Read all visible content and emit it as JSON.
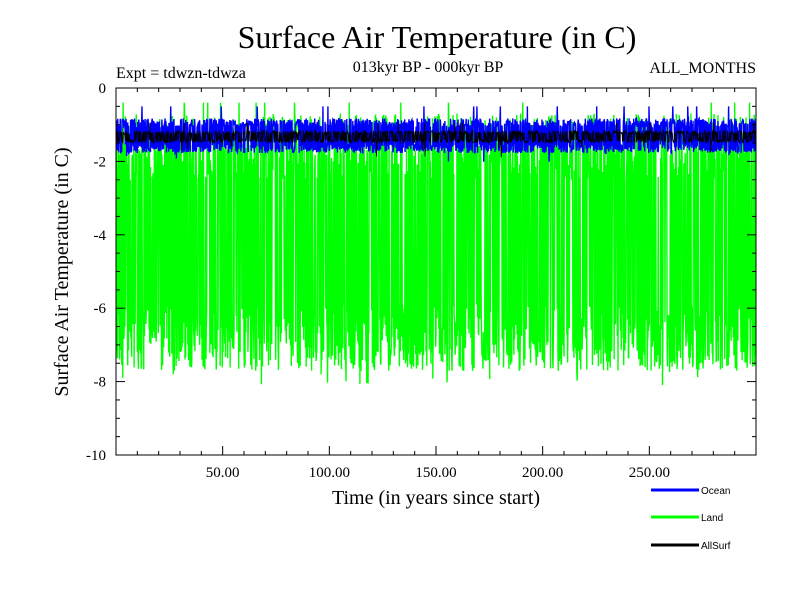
{
  "chart_data": {
    "type": "line",
    "title": "Surface Air Temperature (in C)",
    "subtitle": "013kyr BP - 000kyr BP",
    "experiment_label": "Expt = tdwzn-tdwza",
    "months_label": "ALL_MONTHS",
    "xlabel": "Time (in years since start)",
    "ylabel": "Surface Air Temperature (in C)",
    "xlim": [
      0,
      300
    ],
    "ylim": [
      -10,
      0
    ],
    "x_ticks": [
      50,
      100,
      150,
      200,
      250
    ],
    "x_tick_labels": [
      "50.00",
      "100.00",
      "150.00",
      "200.00",
      "250.00"
    ],
    "y_ticks": [
      0,
      -2,
      -4,
      -6,
      -8,
      -10
    ],
    "y_tick_labels": [
      "0",
      "-2",
      "-4",
      "-6",
      "-8",
      "-10"
    ],
    "grid": false,
    "legend_position": "bottom-right",
    "series": [
      {
        "name": "Land",
        "color": "#00ff00",
        "band_upper": -1.6,
        "band_lower": -6.8,
        "extreme_min": -8.1,
        "extreme_max": -0.4
      },
      {
        "name": "Ocean",
        "color": "#0000ff",
        "band_upper": -0.95,
        "band_lower": -1.65,
        "extreme_min": -2.1,
        "extreme_max": -0.5
      },
      {
        "name": "AllSurf",
        "color": "#000000",
        "band_upper": -1.2,
        "band_lower": -1.45,
        "extreme_min": -1.9,
        "extreme_max": -0.95
      }
    ],
    "legend": [
      "Ocean",
      "Land",
      "AllSurf"
    ]
  }
}
